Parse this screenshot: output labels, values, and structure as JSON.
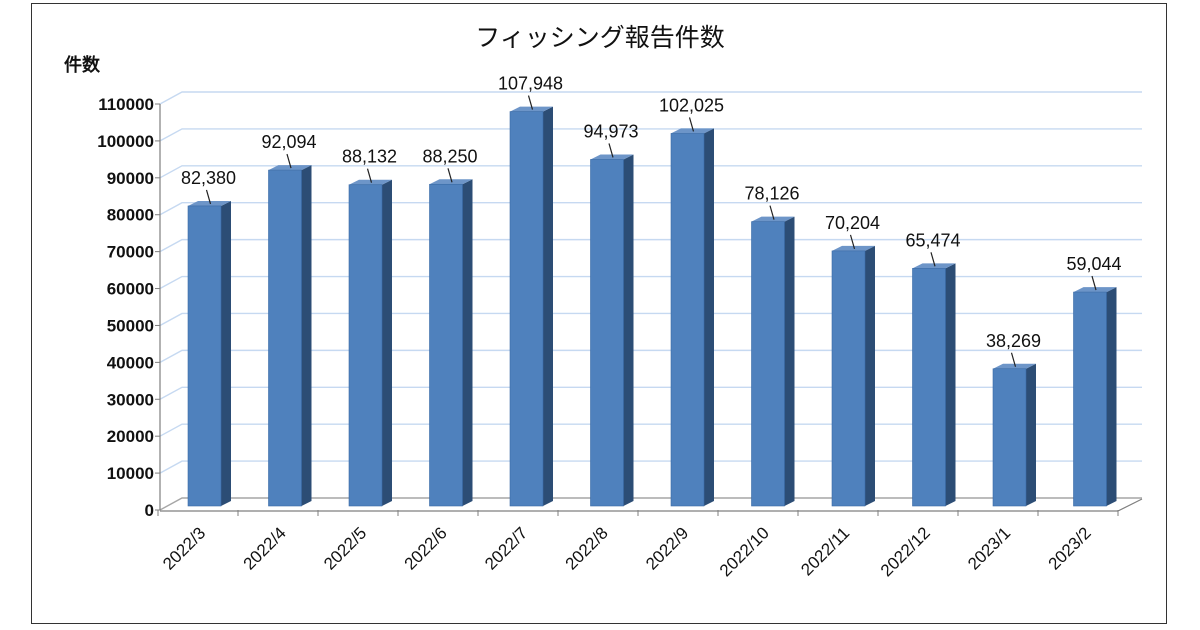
{
  "chart_data": {
    "type": "bar",
    "title": "フィッシング報告件数",
    "ylabel": "件数",
    "xlabel": "",
    "categories": [
      "2022/3",
      "2022/4",
      "2022/5",
      "2022/6",
      "2022/7",
      "2022/8",
      "2022/9",
      "2022/10",
      "2022/11",
      "2022/12",
      "2023/1",
      "2023/2"
    ],
    "values": [
      82380,
      92094,
      88132,
      88250,
      107948,
      94973,
      102025,
      78126,
      70204,
      65474,
      38269,
      59044
    ],
    "data_labels": [
      "82,380",
      "92,094",
      "88,132",
      "88,250",
      "107,948",
      "94,973",
      "102,025",
      "78,126",
      "70,204",
      "65,474",
      "38,269",
      "59,044"
    ],
    "ylim": [
      0,
      110000
    ],
    "yticks": [
      0,
      10000,
      20000,
      30000,
      40000,
      50000,
      60000,
      70000,
      80000,
      90000,
      100000,
      110000
    ],
    "grid": true,
    "style": "3d-column"
  },
  "colors": {
    "bar_front": "#4f81bd",
    "bar_side": "#2c4d75",
    "bar_top": "#6d95c8",
    "gridline": "#c6d9f1",
    "axis": "#7f7f7f"
  }
}
